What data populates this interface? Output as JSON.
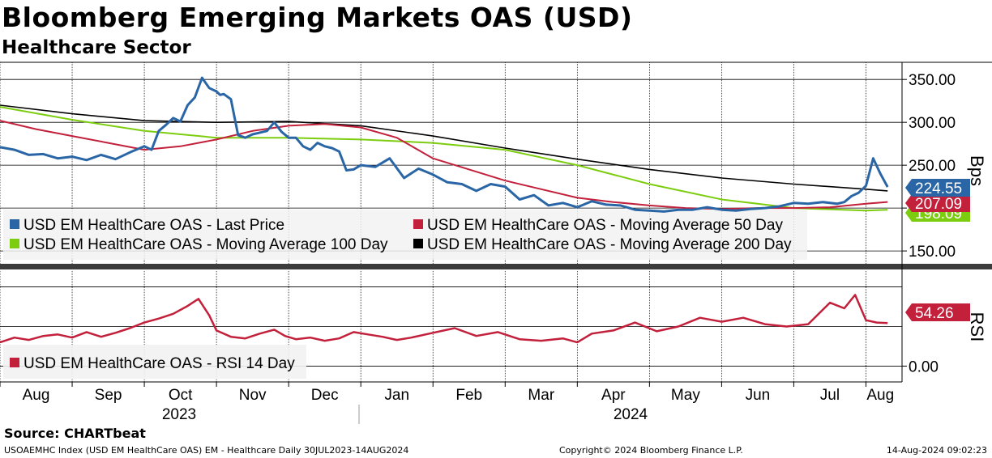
{
  "header": {
    "title": "Bloomberg Emerging Markets OAS (USD)",
    "subtitle": "Healthcare Sector"
  },
  "footer": {
    "source": "Source:  CHARTbeat",
    "ticker": "USOAEMHC Index (USD EM HealthCare OAS) EM - Healthcare  Daily 30JUL2023-14AUG2024",
    "copyright": "Copyright© 2024 Bloomberg Finance L.P.",
    "timestamp": "14-Aug-2024 09:02:23"
  },
  "colors": {
    "last_price": "#2a66a6",
    "ma50": "#c2203b",
    "ma100": "#7ccd0f",
    "ma200": "#000000",
    "rsi": "#c2203b"
  },
  "chart_data": [
    {
      "type": "line",
      "panel": "price",
      "ylabel": "Bps",
      "ylim": [
        135,
        370
      ],
      "yticks": [
        "150.00",
        "200.00",
        "250.00",
        "300.00",
        "350.00"
      ],
      "grid": true,
      "x_unit": "months since 30 Jul 2023",
      "xlim": [
        0,
        12.5
      ],
      "legend": [
        "USD EM HealthCare OAS - Last Price",
        "USD EM HealthCare OAS - Moving Average 50 Day",
        "USD EM HealthCare OAS - Moving Average 100 Day",
        "USD EM HealthCare OAS - Moving Average 200 Day"
      ],
      "legend_position": "bottom-left",
      "last_values": {
        "last_price": "224.55",
        "ma50": "207.09",
        "ma100": "198.09"
      },
      "series": [
        {
          "name": "USD EM HealthCare OAS - Last Price",
          "key": "last_price",
          "x": [
            0,
            0.2,
            0.4,
            0.6,
            0.8,
            1.0,
            1.2,
            1.4,
            1.6,
            1.8,
            2.0,
            2.1,
            2.2,
            2.3,
            2.4,
            2.5,
            2.6,
            2.7,
            2.8,
            2.9,
            3.0,
            3.05,
            3.1,
            3.2,
            3.3,
            3.4,
            3.5,
            3.6,
            3.7,
            3.8,
            3.9,
            4.0,
            4.1,
            4.2,
            4.3,
            4.4,
            4.5,
            4.6,
            4.7,
            4.8,
            4.9,
            5.0,
            5.2,
            5.4,
            5.6,
            5.8,
            6.0,
            6.2,
            6.4,
            6.6,
            6.8,
            7.0,
            7.2,
            7.4,
            7.6,
            7.8,
            8.0,
            8.2,
            8.4,
            8.6,
            8.8,
            9.0,
            9.2,
            9.4,
            9.6,
            9.8,
            10.0,
            10.2,
            10.4,
            10.6,
            10.8,
            11.0,
            11.2,
            11.4,
            11.5,
            11.6,
            11.7,
            11.8,
            11.9,
            12.0,
            12.1,
            12.2,
            12.3
          ],
          "y": [
            271,
            268,
            262,
            263,
            258,
            260,
            256,
            262,
            257,
            265,
            272,
            268,
            290,
            297,
            305,
            301,
            320,
            329,
            352,
            340,
            336,
            332,
            333,
            327,
            285,
            282,
            286,
            288,
            290,
            300,
            289,
            282,
            282,
            272,
            268,
            276,
            272,
            270,
            266,
            244,
            245,
            250,
            248,
            258,
            235,
            246,
            239,
            230,
            228,
            220,
            228,
            225,
            210,
            215,
            203,
            206,
            201,
            208,
            204,
            203,
            198,
            197,
            196,
            198,
            198,
            201,
            198,
            197,
            199,
            200,
            202,
            206,
            205,
            207,
            206,
            205,
            207,
            214,
            218,
            226,
            258,
            240,
            224.55
          ]
        },
        {
          "name": "USD EM HealthCare OAS - Moving Average 50 Day",
          "key": "ma50",
          "x": [
            0,
            0.5,
            1.0,
            1.5,
            2.0,
            2.5,
            3.0,
            3.5,
            4.0,
            4.5,
            5.0,
            5.5,
            6.0,
            6.5,
            7.0,
            7.5,
            8.0,
            8.5,
            9.0,
            9.5,
            10.0,
            10.5,
            11.0,
            11.5,
            12.0,
            12.3
          ],
          "y": [
            302,
            292,
            284,
            276,
            268,
            272,
            280,
            290,
            296,
            298,
            294,
            282,
            258,
            245,
            232,
            222,
            212,
            207,
            203,
            200,
            199,
            200,
            200,
            201,
            205,
            207.09
          ]
        },
        {
          "name": "USD EM HealthCare OAS - Moving Average 100 Day",
          "key": "ma100",
          "x": [
            0,
            1.0,
            2.0,
            3.0,
            4.0,
            5.0,
            6.0,
            7.0,
            8.0,
            9.0,
            10.0,
            11.0,
            12.0,
            12.3
          ],
          "y": [
            318,
            303,
            290,
            282,
            282,
            280,
            276,
            268,
            250,
            228,
            210,
            200,
            197,
            198.09
          ]
        },
        {
          "name": "USD EM HealthCare OAS - Moving Average 200 Day",
          "key": "ma200",
          "x": [
            0,
            1.0,
            2.0,
            3.0,
            4.0,
            5.0,
            6.0,
            7.0,
            8.0,
            9.0,
            10.0,
            11.0,
            12.0,
            12.3
          ],
          "y": [
            320,
            310,
            302,
            300,
            301,
            296,
            284,
            270,
            257,
            245,
            235,
            228,
            222,
            220
          ]
        }
      ]
    },
    {
      "type": "line",
      "panel": "rsi",
      "ylabel": "RSI",
      "ylim": [
        -20,
        120
      ],
      "yticks": [
        "0.00"
      ],
      "grid": true,
      "x_unit": "months since 30 Jul 2023",
      "xlim": [
        0,
        12.5
      ],
      "legend": [
        "USD EM HealthCare OAS - RSI 14 Day"
      ],
      "legend_position": "bottom-left",
      "last_values": {
        "rsi": "54.26"
      },
      "series": [
        {
          "name": "USD EM HealthCare OAS - RSI 14 Day",
          "key": "rsi",
          "x": [
            0,
            0.2,
            0.4,
            0.6,
            0.8,
            1.0,
            1.2,
            1.4,
            1.6,
            1.8,
            2.0,
            2.2,
            2.4,
            2.6,
            2.75,
            2.9,
            3.0,
            3.2,
            3.4,
            3.6,
            3.8,
            3.95,
            4.1,
            4.3,
            4.5,
            4.7,
            4.9,
            5.1,
            5.3,
            5.5,
            5.7,
            6.0,
            6.3,
            6.6,
            6.9,
            7.2,
            7.5,
            7.8,
            8.0,
            8.2,
            8.5,
            8.8,
            9.1,
            9.4,
            9.7,
            10.0,
            10.3,
            10.6,
            10.9,
            11.2,
            11.5,
            11.7,
            11.85,
            12.0,
            12.15,
            12.3
          ],
          "y": [
            30,
            36,
            33,
            38,
            40,
            36,
            43,
            37,
            42,
            48,
            55,
            60,
            66,
            76,
            85,
            64,
            45,
            37,
            35,
            41,
            46,
            38,
            34,
            36,
            32,
            35,
            43,
            40,
            37,
            33,
            36,
            42,
            48,
            38,
            43,
            34,
            32,
            35,
            30,
            41,
            45,
            55,
            44,
            50,
            61,
            56,
            61,
            53,
            50,
            53,
            80,
            73,
            90,
            58,
            55,
            54.26
          ]
        }
      ]
    }
  ],
  "x_axis": {
    "months": [
      "Aug",
      "Sep",
      "Oct",
      "Nov",
      "Dec",
      "Jan",
      "Feb",
      "Mar",
      "Apr",
      "May",
      "Jun",
      "Jul",
      "Aug"
    ],
    "years": [
      "2023",
      "2024"
    ]
  }
}
